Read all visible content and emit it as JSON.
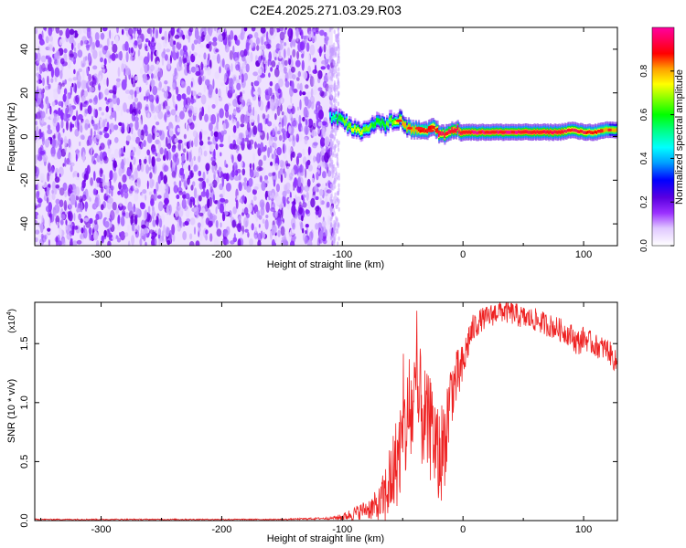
{
  "title": "C2E4.2025.271.03.29.R03",
  "chart_data": [
    {
      "type": "heatmap",
      "title": "C2E4.2025.271.03.29.R03",
      "xlabel": "Height of straight line (km)",
      "ylabel": "Frequency (Hz)",
      "xlim": [
        -355,
        128
      ],
      "ylim": [
        -50,
        50
      ],
      "xticks": [
        -300,
        -200,
        -100,
        0,
        100
      ],
      "yticks": [
        -40,
        -20,
        0,
        20,
        40
      ],
      "xtick_labels": [
        "-300",
        "-200",
        "-100",
        "0",
        "100"
      ],
      "ytick_labels": [
        "-40",
        "-20",
        "0",
        "20",
        "40"
      ],
      "colorbar": {
        "label": "Normalized spectral amplitude",
        "range": [
          0,
          1
        ],
        "ticks": [
          0.0,
          0.2,
          0.4,
          0.6,
          0.8
        ],
        "tick_labels": [
          "0.0",
          "0.2",
          "0.4",
          "0.6",
          "0.8"
        ],
        "colormap": [
          "#ffffff",
          "#e0c8ff",
          "#9b30ff",
          "#5a00e0",
          "#0000ff",
          "#00a0ff",
          "#00ffff",
          "#00ff80",
          "#00ff00",
          "#80ff00",
          "#ffff00",
          "#ffa000",
          "#ff0000",
          "#ff0060",
          "#ff00a0"
        ]
      },
      "noise_region_x": [
        -355,
        -108
      ],
      "ridge": {
        "x": [
          -110,
          -105,
          -100,
          -95,
          -90,
          -85,
          -80,
          -75,
          -70,
          -65,
          -60,
          -55,
          -50,
          -45,
          -40,
          -35,
          -30,
          -25,
          -20,
          -15,
          -10,
          -5,
          0,
          10,
          20,
          30,
          40,
          50,
          60,
          70,
          80,
          90,
          100,
          110,
          120,
          128
        ],
        "freq": [
          9,
          8,
          7,
          5,
          4,
          2,
          3,
          5,
          6,
          5,
          7,
          8,
          6,
          4,
          3,
          4,
          2,
          3,
          2,
          1,
          2,
          3,
          2,
          2,
          2,
          2,
          2,
          2,
          2,
          2,
          2,
          3,
          2,
          2,
          3,
          3
        ],
        "amplitude": [
          0.45,
          0.55,
          0.6,
          0.65,
          0.7,
          0.7,
          0.65,
          0.6,
          0.55,
          0.6,
          0.65,
          0.7,
          0.75,
          0.8,
          0.8,
          0.85,
          0.85,
          0.85,
          0.9,
          0.92,
          0.92,
          0.95,
          0.95,
          0.97,
          0.98,
          0.98,
          0.97,
          0.96,
          0.95,
          0.94,
          0.93,
          0.92,
          0.9,
          0.85,
          0.8,
          0.75
        ]
      }
    },
    {
      "type": "line",
      "xlabel": "Height of straight line (km)",
      "ylabel": "SNR (10 * v/v)",
      "yscale_label": "(x10",
      "yscale_exp": "4",
      "yscale_close": ")",
      "xlim": [
        -355,
        128
      ],
      "ylim": [
        0,
        1.85
      ],
      "xticks": [
        -300,
        -200,
        -100,
        0,
        100
      ],
      "yticks": [
        0.0,
        0.5,
        1.0,
        1.5
      ],
      "xtick_labels": [
        "-300",
        "-200",
        "-100",
        "0",
        "100"
      ],
      "ytick_labels": [
        "0.0",
        "0.5",
        "1.0",
        "1.5"
      ],
      "series": [
        {
          "name": "SNR",
          "color": "#ee2222",
          "x": [
            -355,
            -300,
            -250,
            -200,
            -150,
            -110,
            -100,
            -90,
            -80,
            -70,
            -65,
            -60,
            -55,
            -50,
            -45,
            -40,
            -35,
            -30,
            -25,
            -20,
            -15,
            -10,
            -5,
            0,
            5,
            10,
            15,
            20,
            25,
            30,
            40,
            50,
            60,
            70,
            80,
            90,
            95,
            100,
            110,
            120,
            128
          ],
          "y": [
            0.01,
            0.01,
            0.01,
            0.01,
            0.01,
            0.02,
            0.03,
            0.06,
            0.1,
            0.12,
            0.2,
            0.35,
            0.5,
            0.7,
            0.85,
            1.0,
            0.95,
            0.8,
            0.75,
            0.5,
            0.7,
            1.1,
            1.2,
            1.3,
            1.55,
            1.65,
            1.7,
            1.72,
            1.75,
            1.78,
            1.76,
            1.72,
            1.7,
            1.66,
            1.62,
            1.57,
            1.5,
            1.55,
            1.48,
            1.45,
            1.32
          ],
          "noise_amplitude": [
            0.005,
            0.005,
            0.005,
            0.005,
            0.005,
            0.01,
            0.03,
            0.06,
            0.08,
            0.15,
            0.25,
            0.35,
            0.4,
            0.45,
            0.5,
            0.55,
            0.5,
            0.45,
            0.45,
            0.45,
            0.4,
            0.3,
            0.25,
            0.2,
            0.15,
            0.12,
            0.1,
            0.1,
            0.1,
            0.1,
            0.1,
            0.1,
            0.1,
            0.1,
            0.1,
            0.1,
            0.12,
            0.1,
            0.1,
            0.1,
            0.1
          ]
        }
      ]
    }
  ]
}
